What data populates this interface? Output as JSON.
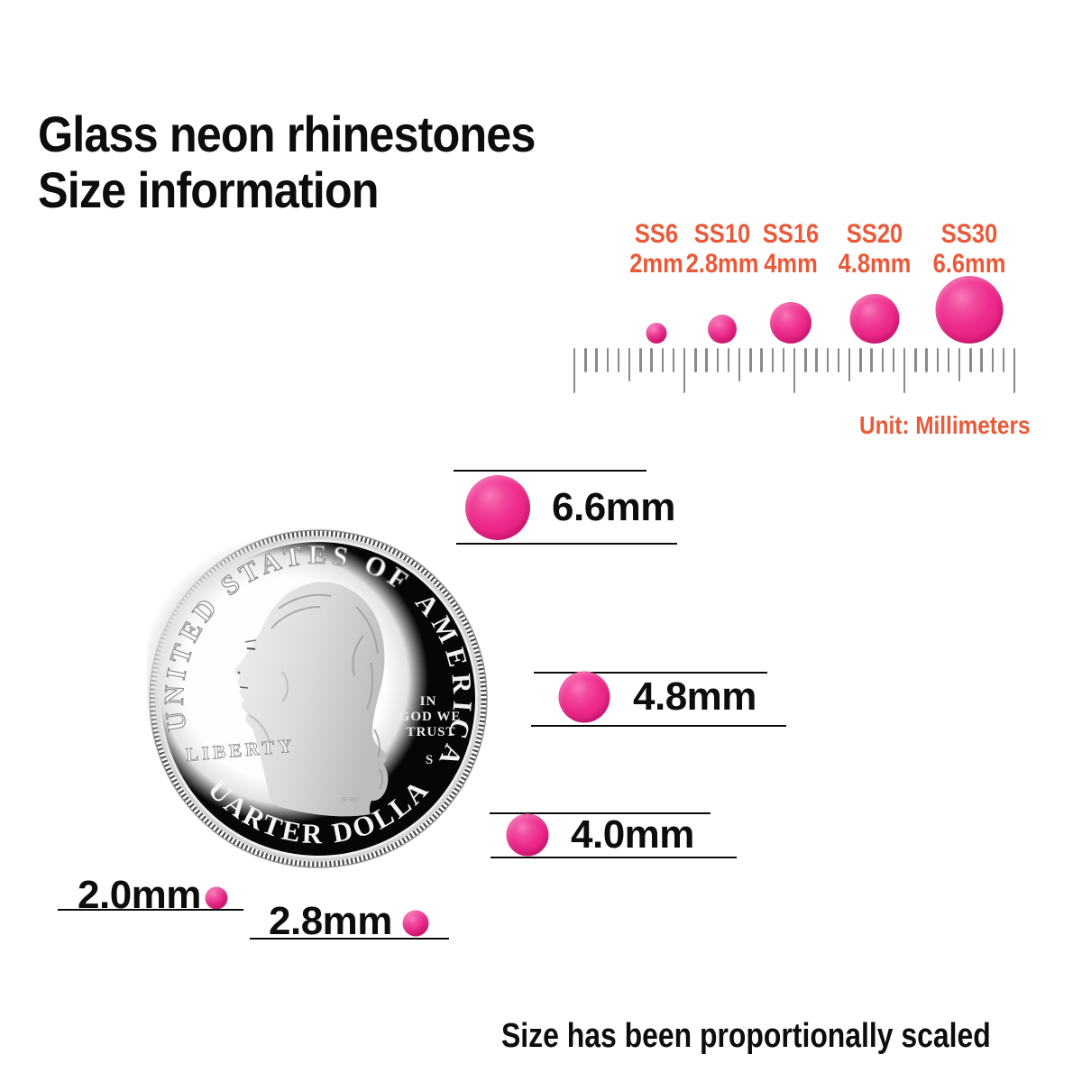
{
  "title": {
    "line1": "Glass neon rhinestones",
    "line2": "Size information"
  },
  "colors": {
    "accent_orange": "#EA5A38",
    "rhinestone_pink": "#EE2B8C",
    "ruler_gray": "#8A8A8A",
    "text_black": "#0D0D0D"
  },
  "size_chart": {
    "items": [
      {
        "ss": "SS6",
        "mm_label": "2mm",
        "mm": 2.0
      },
      {
        "ss": "SS10",
        "mm_label": "2.8mm",
        "mm": 2.8
      },
      {
        "ss": "SS16",
        "mm_label": "4mm",
        "mm": 4.0
      },
      {
        "ss": "SS20",
        "mm_label": "4.8mm",
        "mm": 4.8
      },
      {
        "ss": "SS30",
        "mm_label": "6.6mm",
        "mm": 6.6
      }
    ],
    "unit_label": "Unit: Millimeters",
    "ruler": {
      "total_ticks": 41,
      "major_every": 10,
      "medium_every": 5
    }
  },
  "coin": {
    "top_text_left": "UNITED STATES OF",
    "top_text_right": "AMERICA",
    "left_text": "LIBERTY",
    "motto_lines": [
      "IN",
      "GOD WE",
      "TRUST"
    ],
    "mint_mark": "S",
    "bottom_text": "QUARTER DOLLAR"
  },
  "comparison": {
    "rows": [
      {
        "label": "6.6mm",
        "mm": 6.6
      },
      {
        "label": "4.8mm",
        "mm": 4.8
      },
      {
        "label": "4.0mm",
        "mm": 4.0
      }
    ],
    "bottom_items": [
      {
        "label": "2.0mm",
        "mm": 2.0
      },
      {
        "label": "2.8mm",
        "mm": 2.8
      }
    ]
  },
  "footer": {
    "note": "Size has been proportionally scaled"
  }
}
